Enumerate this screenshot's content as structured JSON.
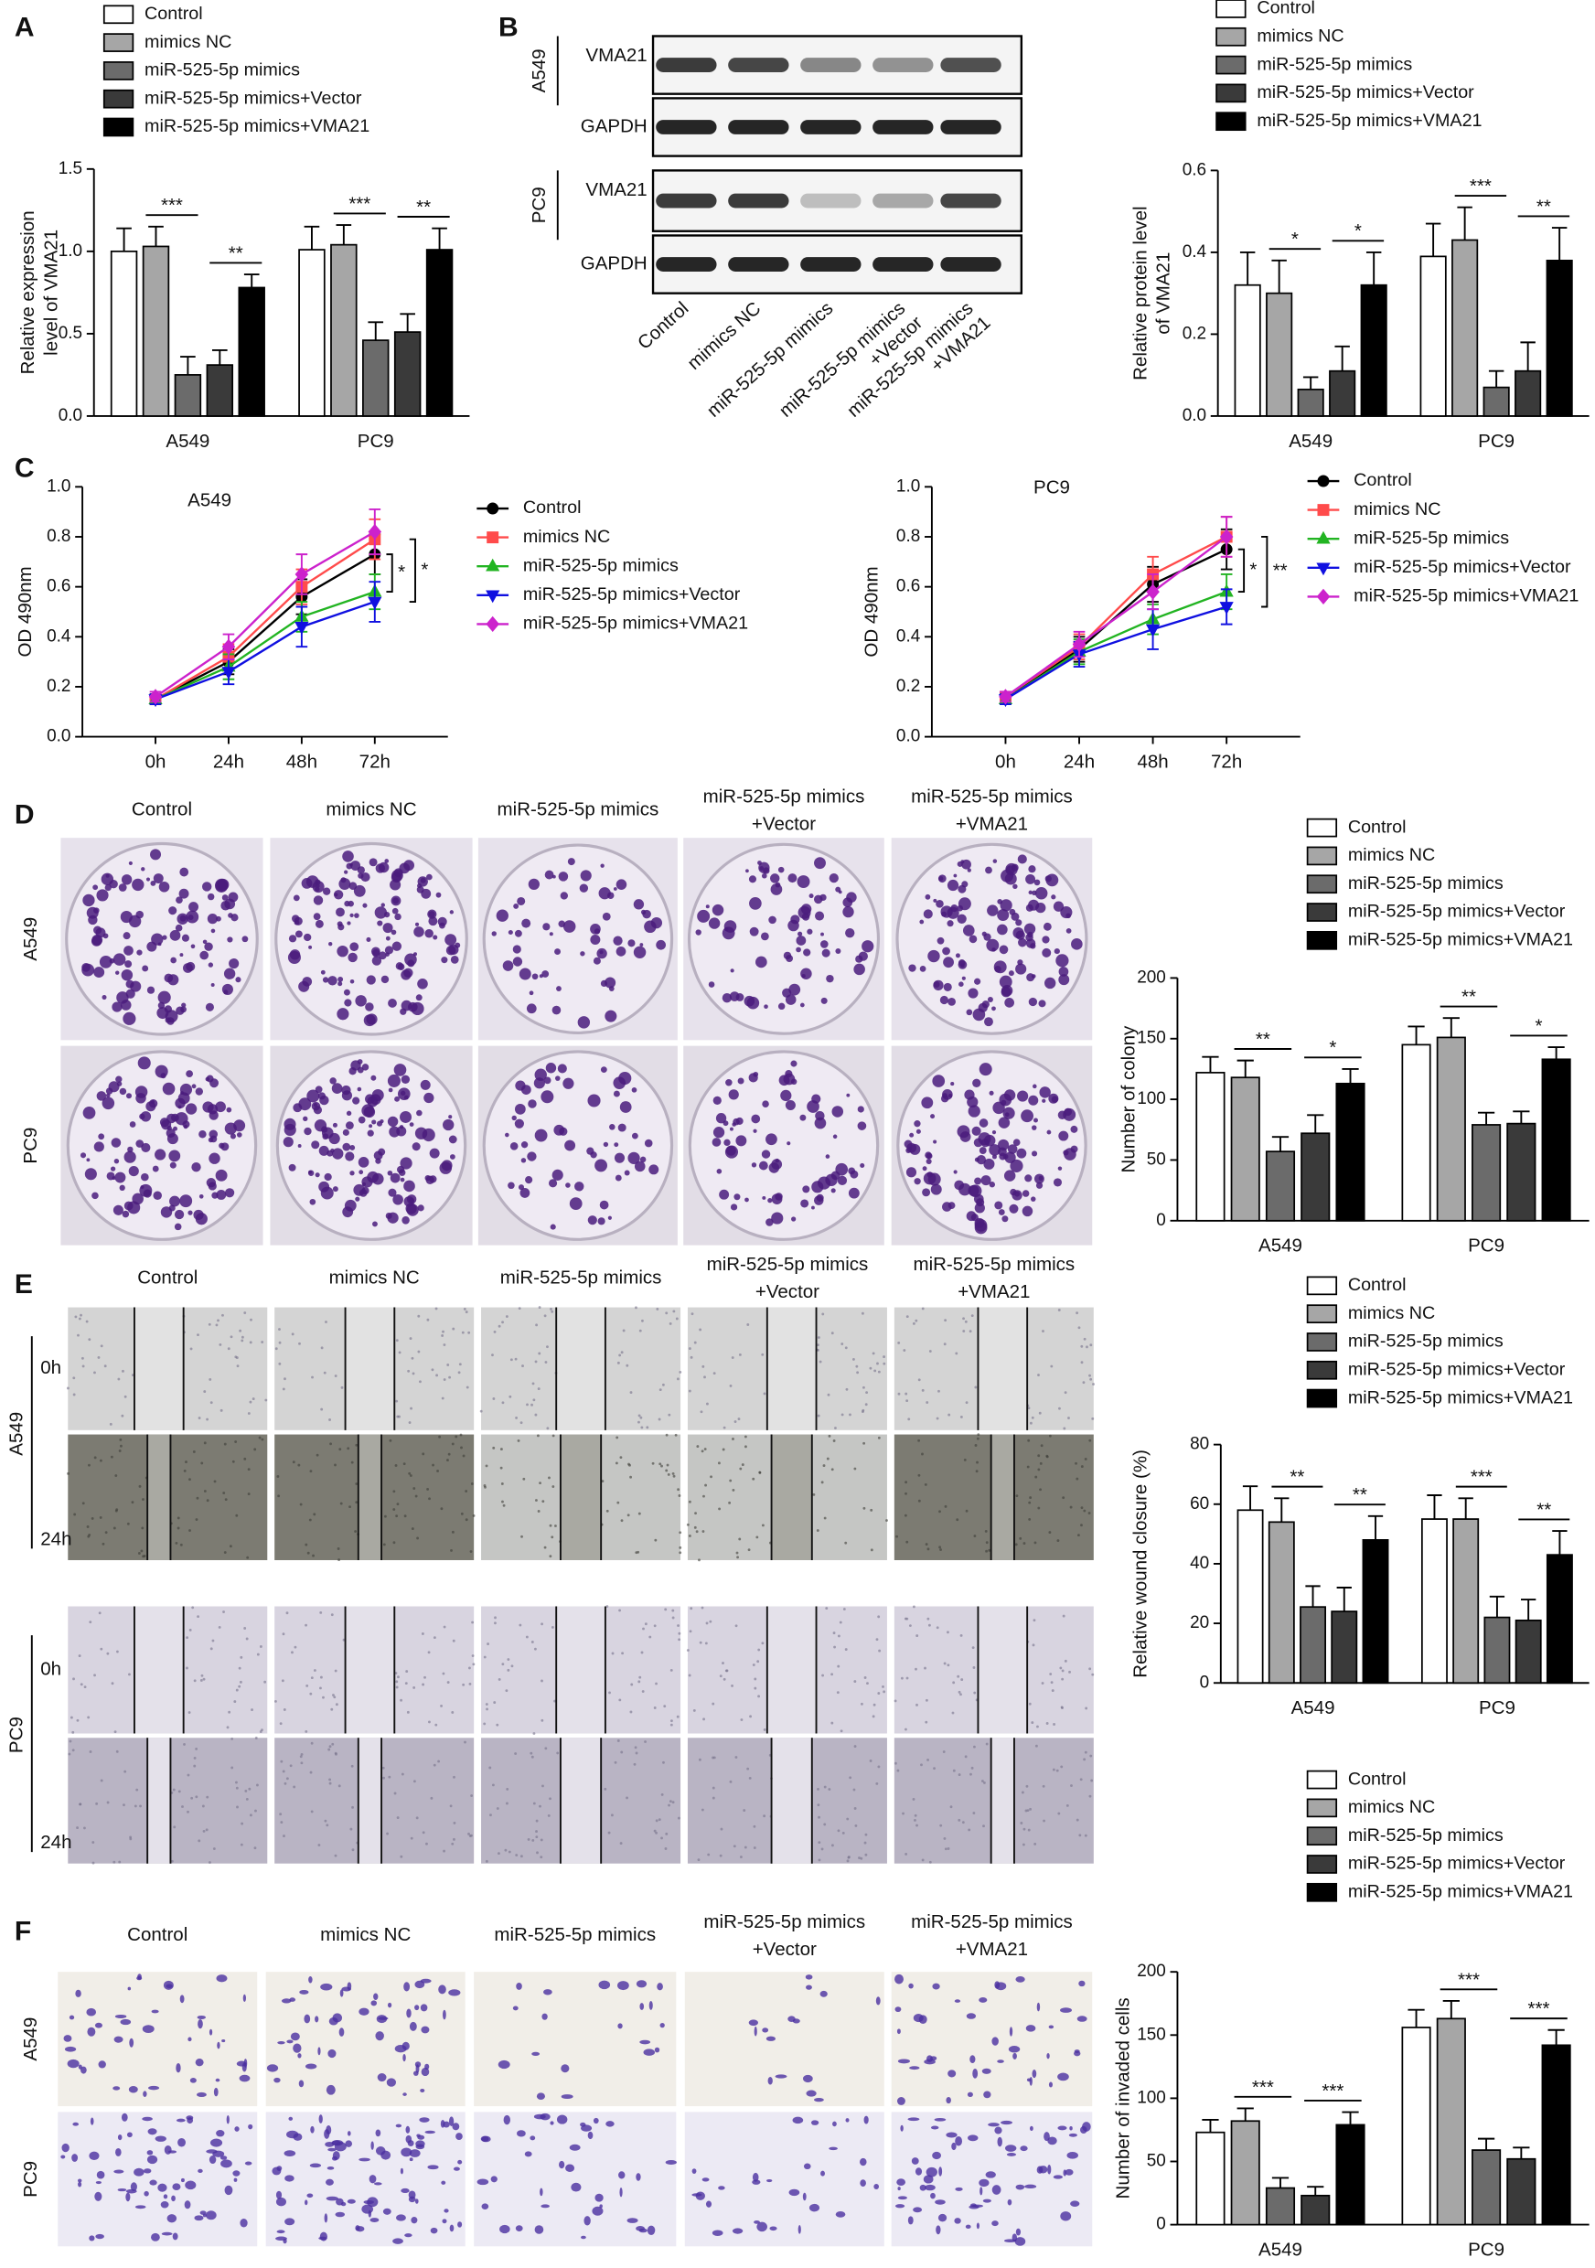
{
  "panel_labels": [
    "A",
    "B",
    "C",
    "D",
    "E",
    "F"
  ],
  "blot": {
    "proteins": [
      "VMA21",
      "GAPDH"
    ],
    "cell_lines": [
      "A549",
      "PC9"
    ],
    "lanes": [
      [
        "Control"
      ],
      [
        "mimics NC"
      ],
      [
        "miR-525-5p mimics"
      ],
      [
        "miR-525-5p mimics",
        "+Vector"
      ],
      [
        "miR-525-5p mimics",
        "+VMA21"
      ]
    ]
  },
  "photo_panels": [
    {
      "columns": [
        [
          "Control"
        ],
        [
          "mimics NC"
        ],
        [
          "miR-525-5p mimics"
        ],
        [
          "miR-525-5p mimics",
          "+Vector"
        ],
        [
          "miR-525-5p mimics",
          "+VMA21"
        ]
      ],
      "rows": [
        "A549",
        "PC9"
      ]
    },
    {
      "columns": [
        [
          "Control"
        ],
        [
          "mimics NC"
        ],
        [
          "miR-525-5p mimics"
        ],
        [
          "miR-525-5p mimics",
          "+Vector"
        ],
        [
          "miR-525-5p mimics",
          "+VMA21"
        ]
      ],
      "rows": [
        {
          "name": "A549",
          "times": [
            "0h",
            "24h"
          ]
        },
        {
          "name": "PC9",
          "times": [
            "0h",
            "24h"
          ]
        }
      ]
    },
    {
      "columns": [
        [
          "Control"
        ],
        [
          "mimics NC"
        ],
        [
          "miR-525-5p mimics"
        ],
        [
          "miR-525-5p mimics",
          "+Vector"
        ],
        [
          "miR-525-5p mimics",
          "+VMA21"
        ]
      ],
      "rows": [
        "A549",
        "PC9"
      ]
    }
  ],
  "chart_data": [
    {
      "type": "bar",
      "categories": [
        "A549",
        "PC9"
      ],
      "ylabel": [
        "Relative expression",
        "level of VMA21"
      ],
      "ylim": [
        0,
        1.5
      ],
      "yticks": [
        {
          "value": 0,
          "label": "0.0"
        },
        0.5,
        {
          "value": 1,
          "label": "1.0"
        },
        1.5
      ],
      "series": [
        {
          "name": "Control",
          "color": "#ffffff",
          "values": [
            1.0,
            1.01
          ],
          "errors": [
            0.14,
            0.14
          ]
        },
        {
          "name": "mimics NC",
          "color": "#a6a6a6",
          "values": [
            1.03,
            1.04
          ],
          "errors": [
            0.12,
            0.12
          ]
        },
        {
          "name": "miR-525-5p mimics",
          "color": "#6b6b6b",
          "values": [
            0.25,
            0.46
          ],
          "errors": [
            0.11,
            0.11
          ]
        },
        {
          "name": "miR-525-5p mimics+Vector",
          "color": "#3a3a3a",
          "values": [
            0.31,
            0.51
          ],
          "errors": [
            0.09,
            0.11
          ]
        },
        {
          "name": "miR-525-5p mimics+VMA21",
          "color": "#000000",
          "values": [
            0.78,
            1.01
          ],
          "errors": [
            0.08,
            0.13
          ]
        }
      ],
      "annotations": [
        {
          "text": "***",
          "category": 0,
          "series": [
            1,
            2
          ]
        },
        {
          "text": "**",
          "category": 0,
          "series": [
            3,
            4
          ]
        },
        {
          "text": "***",
          "category": 1,
          "series": [
            1,
            2
          ]
        },
        {
          "text": "**",
          "category": 1,
          "series": [
            3,
            4
          ]
        }
      ]
    },
    {
      "type": "bar",
      "categories": [
        "A549",
        "PC9"
      ],
      "ylabel": [
        "Relative protein level",
        "of VMA21"
      ],
      "ylim": [
        0,
        0.6
      ],
      "yticks": [
        {
          "value": 0,
          "label": "0.0"
        },
        0.2,
        0.4,
        0.6
      ],
      "series": [
        {
          "name": "Control",
          "color": "#ffffff",
          "values": [
            0.32,
            0.39
          ],
          "errors": [
            0.08,
            0.08
          ]
        },
        {
          "name": "mimics NC",
          "color": "#a6a6a6",
          "values": [
            0.3,
            0.43
          ],
          "errors": [
            0.08,
            0.08
          ]
        },
        {
          "name": "miR-525-5p mimics",
          "color": "#6b6b6b",
          "values": [
            0.065,
            0.07
          ],
          "errors": [
            0.03,
            0.04
          ]
        },
        {
          "name": "miR-525-5p mimics+Vector",
          "color": "#3a3a3a",
          "values": [
            0.11,
            0.11
          ],
          "errors": [
            0.06,
            0.07
          ]
        },
        {
          "name": "miR-525-5p mimics+VMA21",
          "color": "#000000",
          "values": [
            0.32,
            0.38
          ],
          "errors": [
            0.08,
            0.08
          ]
        }
      ],
      "annotations": [
        {
          "text": "*",
          "category": 0,
          "series": [
            1,
            2
          ]
        },
        {
          "text": "*",
          "category": 0,
          "series": [
            3,
            4
          ]
        },
        {
          "text": "***",
          "category": 1,
          "series": [
            1,
            2
          ]
        },
        {
          "text": "**",
          "category": 1,
          "series": [
            3,
            4
          ]
        }
      ]
    },
    {
      "type": "line",
      "title": "A549",
      "categories": [
        "0h",
        "24h",
        "48h",
        "72h"
      ],
      "ylabel": [
        "OD 490nm"
      ],
      "ylim": [
        0,
        1
      ],
      "yticks": [
        {
          "value": 0,
          "label": "0.0"
        },
        0.2,
        0.4,
        0.6,
        0.8,
        {
          "value": 1,
          "label": "1.0"
        }
      ],
      "series": [
        {
          "name": "Control",
          "color": "#000000",
          "marker": "circle",
          "values": [
            0.15,
            0.3,
            0.56,
            0.73
          ],
          "errors": [
            0.02,
            0.05,
            0.07,
            0.08
          ]
        },
        {
          "name": "mimics NC",
          "color": "#ff4b4b",
          "marker": "square",
          "values": [
            0.15,
            0.32,
            0.6,
            0.79
          ],
          "errors": [
            0.02,
            0.05,
            0.07,
            0.08
          ]
        },
        {
          "name": "miR-525-5p mimics",
          "color": "#22b422",
          "marker": "triangle",
          "values": [
            0.15,
            0.28,
            0.48,
            0.58
          ],
          "errors": [
            0.02,
            0.05,
            0.06,
            0.07
          ]
        },
        {
          "name": "miR-525-5p mimics+Vector",
          "color": "#1010e0",
          "marker": "triangle-down",
          "values": [
            0.15,
            0.26,
            0.44,
            0.54
          ],
          "errors": [
            0.02,
            0.05,
            0.08,
            0.08
          ]
        },
        {
          "name": "miR-525-5p mimics+VMA21",
          "color": "#cc22cc",
          "marker": "diamond",
          "values": [
            0.16,
            0.36,
            0.65,
            0.82
          ],
          "errors": [
            0.02,
            0.05,
            0.08,
            0.09
          ]
        }
      ],
      "annotations": [
        {
          "text": "*",
          "series": [
            0,
            2
          ]
        },
        {
          "text": "*",
          "series": [
            1,
            3
          ]
        }
      ]
    },
    {
      "type": "line",
      "title": "PC9",
      "categories": [
        "0h",
        "24h",
        "48h",
        "72h"
      ],
      "ylabel": [
        "OD 490nm"
      ],
      "ylim": [
        0,
        1
      ],
      "yticks": [
        {
          "value": 0,
          "label": "0.0"
        },
        0.2,
        0.4,
        0.6,
        0.8,
        {
          "value": 1,
          "label": "1.0"
        }
      ],
      "series": [
        {
          "name": "Control",
          "color": "#000000",
          "marker": "circle",
          "values": [
            0.15,
            0.35,
            0.61,
            0.75
          ],
          "errors": [
            0.02,
            0.05,
            0.07,
            0.08
          ]
        },
        {
          "name": "mimics NC",
          "color": "#ff4b4b",
          "marker": "square",
          "values": [
            0.16,
            0.36,
            0.65,
            0.8
          ],
          "errors": [
            0.02,
            0.05,
            0.07,
            0.08
          ]
        },
        {
          "name": "miR-525-5p mimics",
          "color": "#22b422",
          "marker": "triangle",
          "values": [
            0.15,
            0.34,
            0.47,
            0.58
          ],
          "errors": [
            0.02,
            0.05,
            0.06,
            0.07
          ]
        },
        {
          "name": "miR-525-5p mimics+Vector",
          "color": "#1010e0",
          "marker": "triangle-down",
          "values": [
            0.15,
            0.33,
            0.43,
            0.52
          ],
          "errors": [
            0.02,
            0.05,
            0.08,
            0.07
          ]
        },
        {
          "name": "miR-525-5p mimics+VMA21",
          "color": "#cc22cc",
          "marker": "diamond",
          "values": [
            0.16,
            0.37,
            0.58,
            0.8
          ],
          "errors": [
            0.02,
            0.05,
            0.07,
            0.08
          ]
        }
      ],
      "annotations": [
        {
          "text": "*",
          "series": [
            0,
            2
          ]
        },
        {
          "text": "**",
          "series": [
            1,
            3
          ]
        }
      ]
    },
    {
      "type": "bar",
      "categories": [
        "A549",
        "PC9"
      ],
      "ylabel": [
        "Number of colony"
      ],
      "ylim": [
        0,
        200
      ],
      "yticks": [
        0,
        50,
        100,
        150,
        200
      ],
      "series": [
        {
          "name": "Control",
          "color": "#ffffff",
          "values": [
            122,
            145
          ],
          "errors": [
            13,
            15
          ]
        },
        {
          "name": "mimics NC",
          "color": "#a6a6a6",
          "values": [
            118,
            151
          ],
          "errors": [
            14,
            16
          ]
        },
        {
          "name": "miR-525-5p mimics",
          "color": "#6b6b6b",
          "values": [
            57,
            79
          ],
          "errors": [
            12,
            10
          ]
        },
        {
          "name": "miR-525-5p mimics+Vector",
          "color": "#3a3a3a",
          "values": [
            72,
            80
          ],
          "errors": [
            15,
            10
          ]
        },
        {
          "name": "miR-525-5p mimics+VMA21",
          "color": "#000000",
          "values": [
            113,
            133
          ],
          "errors": [
            12,
            10
          ]
        }
      ],
      "annotations": [
        {
          "text": "**",
          "category": 0,
          "series": [
            1,
            2
          ]
        },
        {
          "text": "*",
          "category": 0,
          "series": [
            3,
            4
          ]
        },
        {
          "text": "**",
          "category": 1,
          "series": [
            1,
            2
          ]
        },
        {
          "text": "*",
          "category": 1,
          "series": [
            3,
            4
          ]
        }
      ]
    },
    {
      "type": "bar",
      "categories": [
        "A549",
        "PC9"
      ],
      "ylabel": [
        "Relative wound closure (%)"
      ],
      "ylim": [
        0,
        80
      ],
      "yticks": [
        0,
        20,
        40,
        60,
        80
      ],
      "series": [
        {
          "name": "Control",
          "color": "#ffffff",
          "values": [
            58,
            55
          ],
          "errors": [
            8,
            8
          ]
        },
        {
          "name": "mimics NC",
          "color": "#a6a6a6",
          "values": [
            54,
            55
          ],
          "errors": [
            8,
            7
          ]
        },
        {
          "name": "miR-525-5p mimics",
          "color": "#6b6b6b",
          "values": [
            25.5,
            22
          ],
          "errors": [
            7,
            7
          ]
        },
        {
          "name": "miR-525-5p mimics+Vector",
          "color": "#3a3a3a",
          "values": [
            24,
            21
          ],
          "errors": [
            8,
            7
          ]
        },
        {
          "name": "miR-525-5p mimics+VMA21",
          "color": "#000000",
          "values": [
            48,
            43
          ],
          "errors": [
            8,
            8
          ]
        }
      ],
      "annotations": [
        {
          "text": "**",
          "category": 0,
          "series": [
            1,
            2
          ]
        },
        {
          "text": "**",
          "category": 0,
          "series": [
            3,
            4
          ]
        },
        {
          "text": "***",
          "category": 1,
          "series": [
            1,
            2
          ]
        },
        {
          "text": "**",
          "category": 1,
          "series": [
            3,
            4
          ]
        }
      ]
    },
    {
      "type": "bar",
      "categories": [
        "A549",
        "PC9"
      ],
      "ylabel": [
        "Number of invaded cells"
      ],
      "ylim": [
        0,
        200
      ],
      "yticks": [
        0,
        50,
        100,
        150,
        200
      ],
      "series": [
        {
          "name": "Control",
          "color": "#ffffff",
          "values": [
            73,
            156
          ],
          "errors": [
            10,
            14
          ]
        },
        {
          "name": "mimics NC",
          "color": "#a6a6a6",
          "values": [
            82,
            163
          ],
          "errors": [
            10,
            14
          ]
        },
        {
          "name": "miR-525-5p mimics",
          "color": "#6b6b6b",
          "values": [
            29,
            59
          ],
          "errors": [
            8,
            9
          ]
        },
        {
          "name": "miR-525-5p mimics+Vector",
          "color": "#3a3a3a",
          "values": [
            23,
            52
          ],
          "errors": [
            7,
            9
          ]
        },
        {
          "name": "miR-525-5p mimics+VMA21",
          "color": "#000000",
          "values": [
            79,
            142
          ],
          "errors": [
            10,
            12
          ]
        }
      ],
      "annotations": [
        {
          "text": "***",
          "category": 0,
          "series": [
            1,
            2
          ]
        },
        {
          "text": "***",
          "category": 0,
          "series": [
            3,
            4
          ]
        },
        {
          "text": "***",
          "category": 1,
          "series": [
            1,
            2
          ]
        },
        {
          "text": "***",
          "category": 1,
          "series": [
            3,
            4
          ]
        }
      ]
    }
  ]
}
